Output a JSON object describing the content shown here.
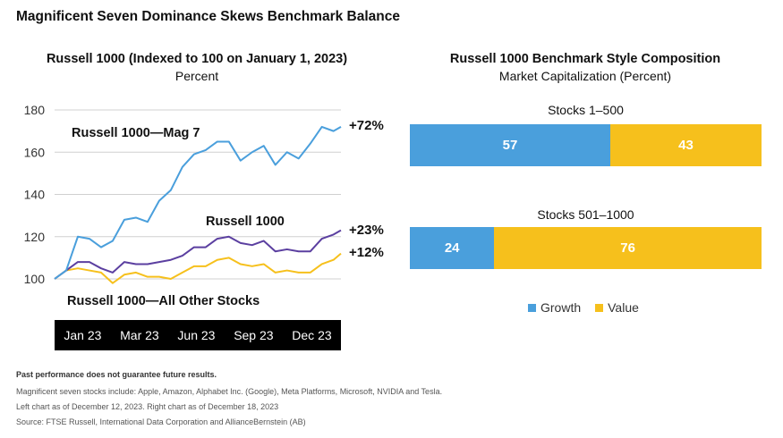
{
  "title": "Magnificent Seven Dominance Skews Benchmark Balance",
  "colors": {
    "mag7": "#4a9fdc",
    "r1000": "#5b3fa0",
    "other": "#f6c01c",
    "growth": "#4a9fdc",
    "value": "#f6c01c",
    "grid": "#d0d0d0"
  },
  "chart_data": [
    {
      "type": "line",
      "title": "Russell 1000 (Indexed to 100 on January 1, 2023)",
      "subtitle": "Percent",
      "ylim": [
        95,
        180
      ],
      "yticks": [
        100,
        120,
        140,
        160,
        180
      ],
      "xtick_labels": [
        "Jan 23",
        "Mar 23",
        "Jun 23",
        "Sep 23",
        "Dec 23"
      ],
      "grid": true,
      "x": [
        "2023-01-01",
        "2023-01-15",
        "2023-01-29",
        "2023-02-12",
        "2023-02-26",
        "2023-03-12",
        "2023-03-26",
        "2023-04-09",
        "2023-04-23",
        "2023-05-07",
        "2023-05-21",
        "2023-06-04",
        "2023-06-18",
        "2023-07-02",
        "2023-07-16",
        "2023-07-30",
        "2023-08-13",
        "2023-08-27",
        "2023-09-10",
        "2023-09-24",
        "2023-10-08",
        "2023-10-22",
        "2023-11-05",
        "2023-11-19",
        "2023-12-03",
        "2023-12-12"
      ],
      "series": [
        {
          "name": "Russell 1000—Mag 7",
          "end_label": "+72%",
          "color": "#4a9fdc",
          "values": [
            100,
            104,
            120,
            119,
            115,
            118,
            128,
            129,
            127,
            137,
            142,
            153,
            159,
            161,
            165,
            165,
            156,
            160,
            163,
            154,
            160,
            157,
            164,
            172,
            170,
            172
          ]
        },
        {
          "name": "Russell 1000",
          "end_label": "+23%",
          "color": "#5b3fa0",
          "values": [
            100,
            104,
            108,
            108,
            105,
            103,
            108,
            107,
            107,
            108,
            109,
            111,
            115,
            115,
            119,
            120,
            117,
            116,
            118,
            113,
            114,
            113,
            113,
            119,
            121,
            123
          ]
        },
        {
          "name": "Russell 1000—All Other Stocks",
          "end_label": "+12%",
          "color": "#f6c01c",
          "values": [
            100,
            104,
            105,
            104,
            103,
            98,
            102,
            103,
            101,
            101,
            100,
            103,
            106,
            106,
            109,
            110,
            107,
            106,
            107,
            103,
            104,
            103,
            103,
            107,
            109,
            112
          ]
        }
      ]
    },
    {
      "type": "bar",
      "orientation": "horizontal-stacked",
      "title": "Russell 1000 Benchmark Style Composition",
      "subtitle": "Market Capitalization (Percent)",
      "categories": [
        "Stocks 1–500",
        "Stocks 501–1000"
      ],
      "series": [
        {
          "name": "Growth",
          "values": [
            57,
            24
          ]
        },
        {
          "name": "Value",
          "values": [
            43,
            76
          ]
        }
      ],
      "legend": "bottom"
    }
  ],
  "footnotes": {
    "bold": "Past performance does not guarantee future results.",
    "lines": [
      "Magnificent seven stocks include: Apple, Amazon, Alphabet Inc. (Google), Meta Platforms, Microsoft, NVIDIA and Tesla.",
      "Left chart as of December 12, 2023. Right chart as of December 18, 2023",
      "Source: FTSE Russell, International Data Corporation and AllianceBernstein (AB)"
    ]
  }
}
